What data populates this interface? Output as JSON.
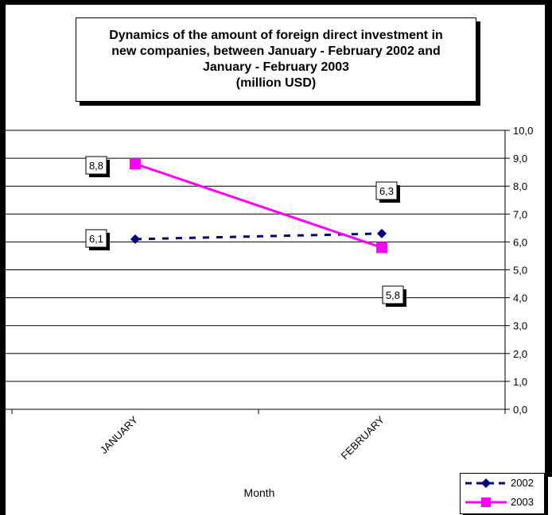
{
  "chart_data": {
    "type": "line",
    "title": "Dynamics of the amount of foreign direct investment in\nnew companies, between January - February 2002 and\nJanuary - February 2003\n(million USD)",
    "xlabel": "Month",
    "ylabel": "",
    "categories": [
      "JANUARY",
      "FEBRUARY"
    ],
    "ylim": [
      0,
      10
    ],
    "ytick_labels": [
      "0,0",
      "1,0",
      "2,0",
      "3,0",
      "4,0",
      "5,0",
      "6,0",
      "7,0",
      "8,0",
      "9,0",
      "10,0"
    ],
    "grid": true,
    "y_axis_side": "right",
    "legend_position": "bottom-right",
    "series": [
      {
        "name": "2002",
        "values": [
          6.1,
          6.3
        ],
        "labels": [
          "6,1",
          "6,3"
        ],
        "color": "#000080",
        "line_style": "dashed",
        "marker": "diamond"
      },
      {
        "name": "2003",
        "values": [
          8.8,
          5.8
        ],
        "labels": [
          "8,8",
          "5,8"
        ],
        "color": "#ff00ff",
        "line_style": "solid",
        "marker": "square"
      }
    ]
  }
}
